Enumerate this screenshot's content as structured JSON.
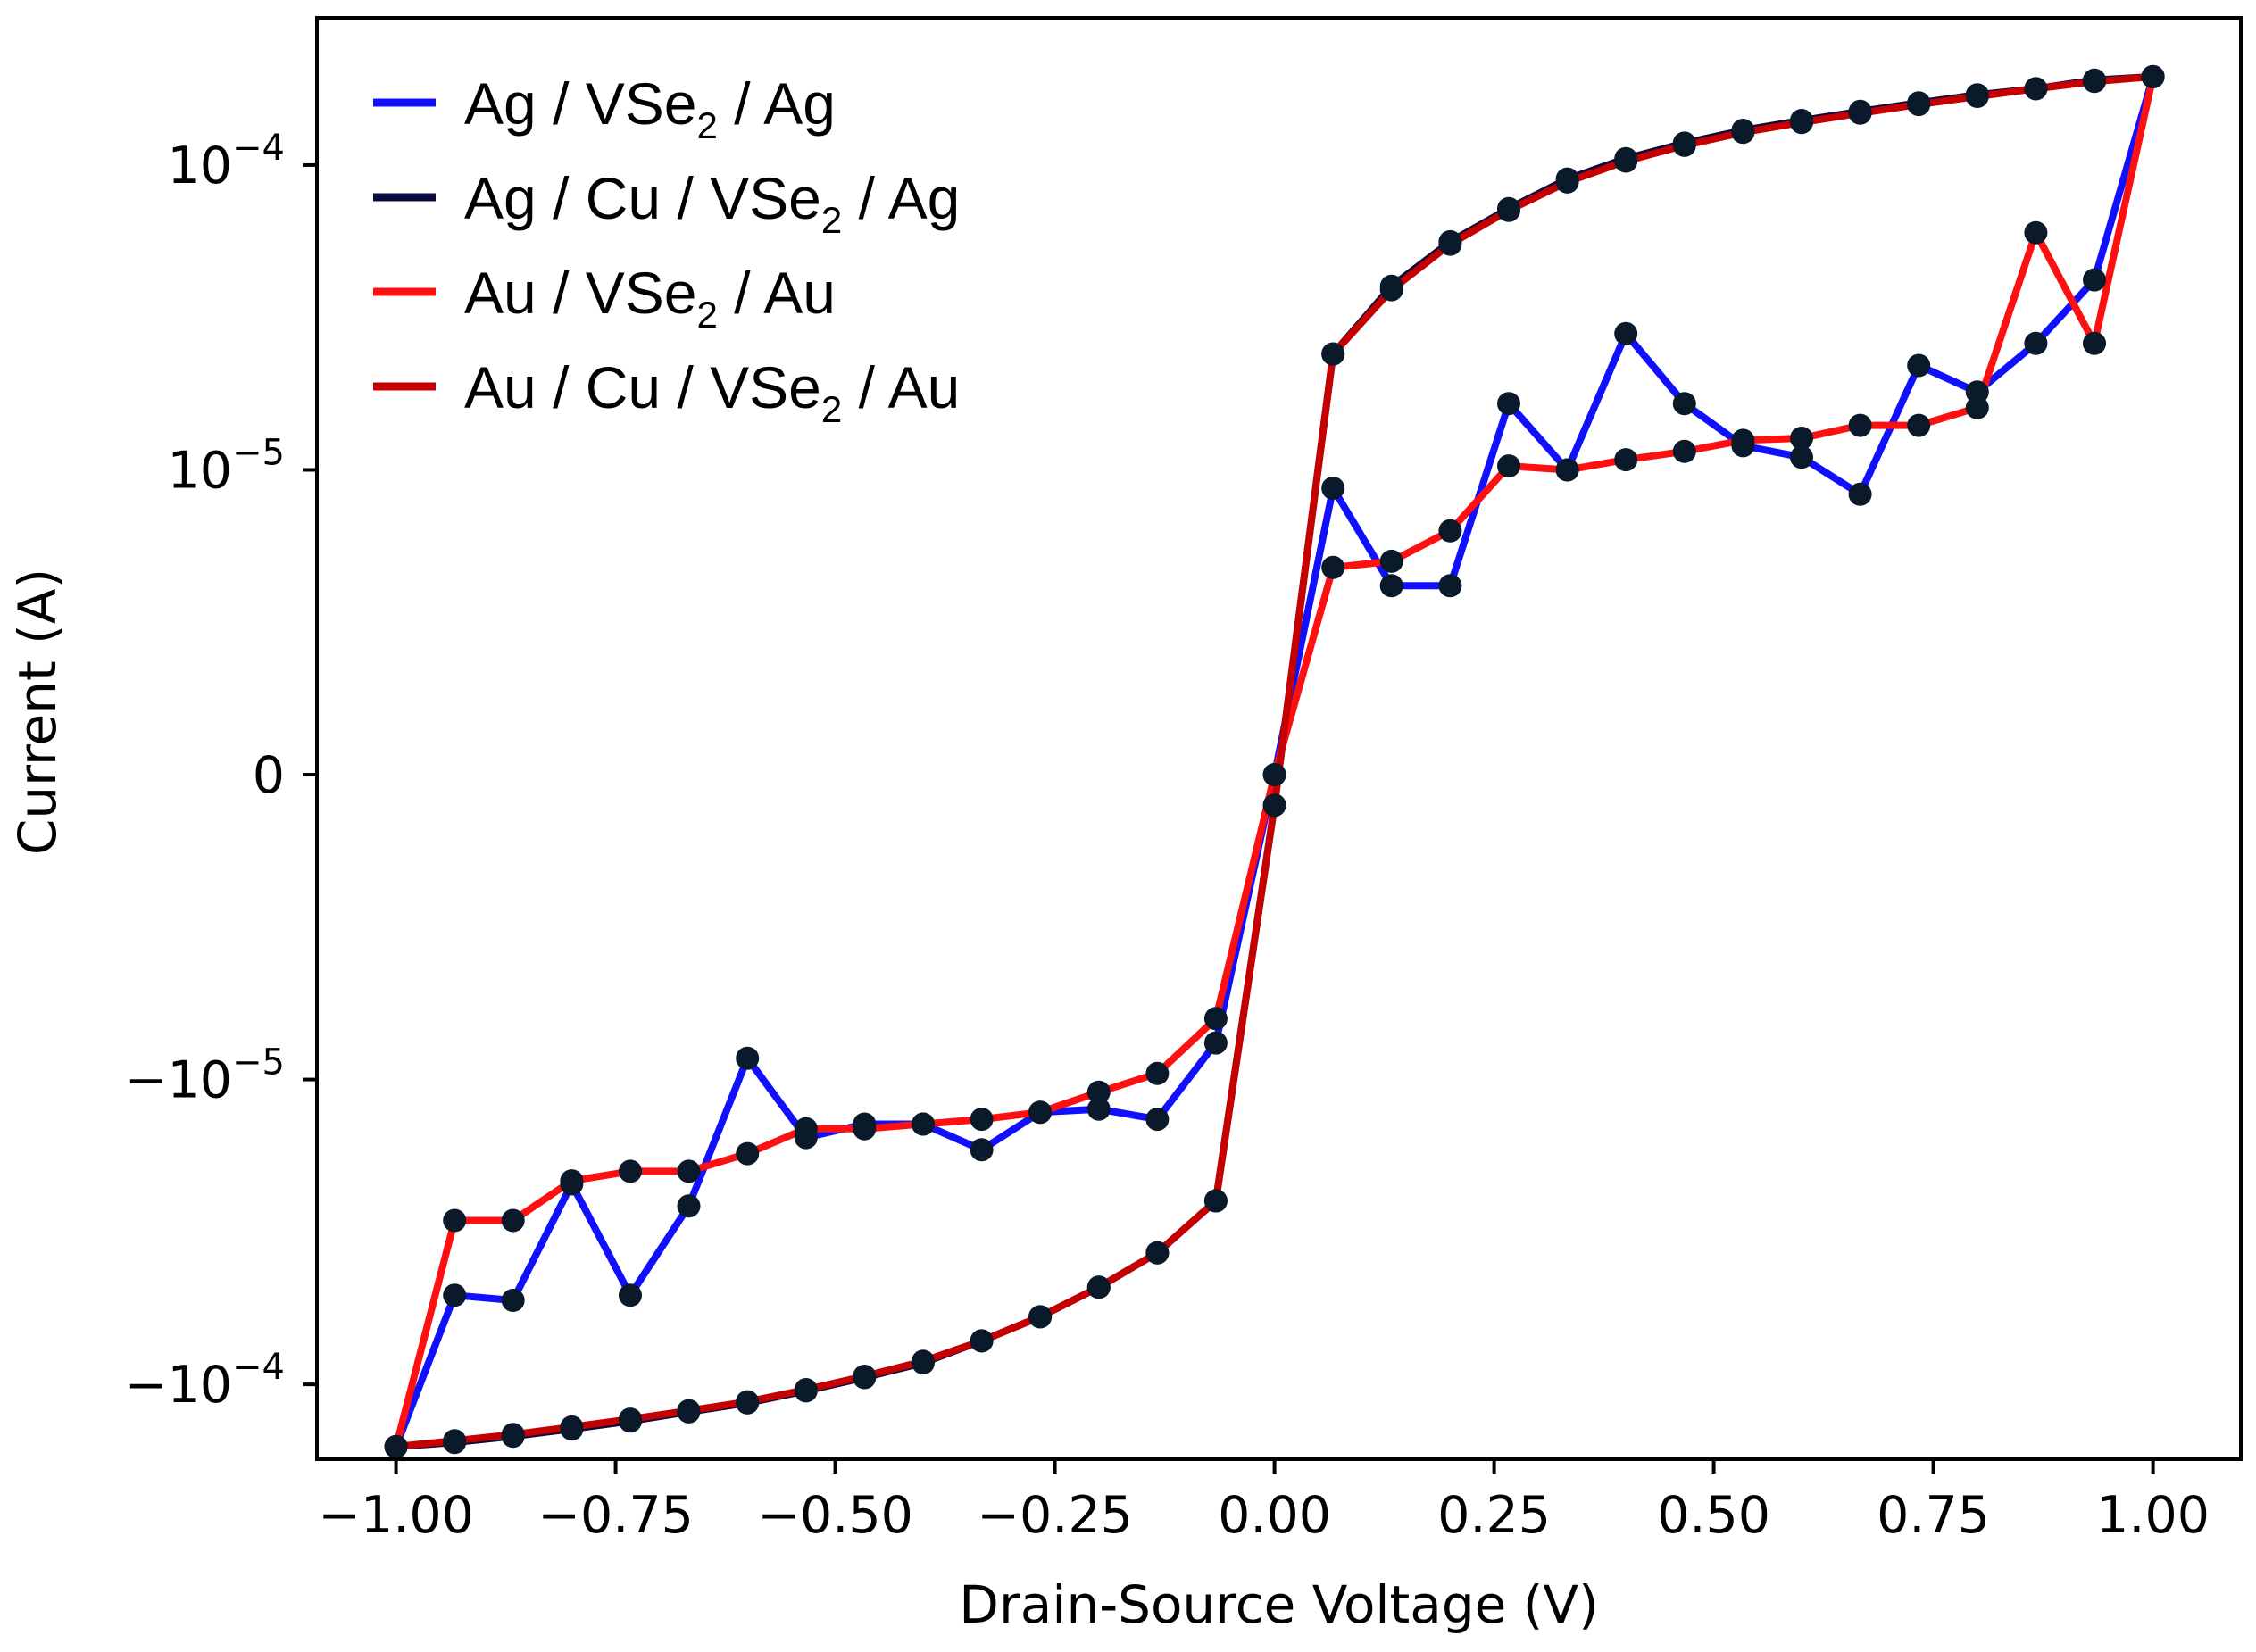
{
  "chart_data": {
    "type": "line",
    "xlabel": "Drain-Source Voltage (V)",
    "ylabel": "Current (A)",
    "xlim": [
      -1.09,
      1.1
    ],
    "y_scale": "symlog",
    "y_linthresh": 1e-05,
    "ylim": [
      -0.000176,
      0.000304
    ],
    "x_ticks": [
      -1.0,
      -0.75,
      -0.5,
      -0.25,
      0.0,
      0.25,
      0.5,
      0.75,
      1.0
    ],
    "x_tick_labels": [
      "−1.00",
      "−0.75",
      "−0.50",
      "−0.25",
      "0.00",
      "0.25",
      "0.50",
      "0.75",
      "1.00"
    ],
    "y_ticks": [
      {
        "value": 0.0001,
        "base": "10",
        "exp": "−4"
      },
      {
        "value": 1e-05,
        "base": "10",
        "exp": "−5"
      },
      {
        "value": 0,
        "base": "0",
        "exp": ""
      },
      {
        "value": -1e-05,
        "base": "−10",
        "exp": "−5"
      },
      {
        "value": -0.0001,
        "base": "−10",
        "exp": "−4"
      }
    ],
    "legend_position": "upper-left",
    "marker_color": "#0a1a2a",
    "series": [
      {
        "name": "Ag / VSe2 / Ag",
        "legend_main": "Ag / VSe",
        "legend_sub": "2",
        "legend_rest": " / Ag",
        "color": "#1010ff",
        "x": [
          -1.0,
          -0.9333,
          -0.8667,
          -0.8,
          -0.7333,
          -0.6667,
          -0.6,
          -0.5333,
          -0.4667,
          -0.4,
          -0.3333,
          -0.2667,
          -0.2,
          -0.1333,
          -0.0667,
          0.0,
          0.0667,
          0.1333,
          0.2,
          0.2667,
          0.3333,
          0.4,
          0.4667,
          0.5333,
          0.6,
          0.6667,
          0.7333,
          0.8,
          0.8667,
          0.9333,
          1.0
        ],
        "y": [
          -0.00016,
          -5.1e-05,
          -5.3e-05,
          -2.2e-05,
          -5.1e-05,
          -2.6e-05,
          -9.3e-06,
          -1.55e-05,
          -1.4e-05,
          -1.4e-05,
          -1.7e-05,
          -1.28e-05,
          -1.25e-05,
          -1.35e-05,
          -8.8e-06,
          0.0,
          9.4e-06,
          6.2e-06,
          6.2e-06,
          1.65e-05,
          1e-05,
          2.8e-05,
          1.65e-05,
          1.2e-05,
          1.1e-05,
          9.2e-06,
          2.2e-05,
          1.8e-05,
          2.6e-05,
          4.2e-05,
          0.000195
        ]
      },
      {
        "name": "Ag / Cu / VSe2 / Ag",
        "legend_main": "Ag / Cu / VSe",
        "legend_sub": "2",
        "legend_rest": " / Ag",
        "color": "#0a0a40",
        "x": [
          1.0,
          0.9333,
          0.8667,
          0.8,
          0.7333,
          0.6667,
          0.6,
          0.5333,
          0.4667,
          0.4,
          0.3333,
          0.2667,
          0.2,
          0.1333,
          0.0667,
          0.0,
          -0.0667,
          -0.1333,
          -0.2,
          -0.2667,
          -0.3333,
          -0.4,
          -0.4667,
          -0.5333,
          -0.6,
          -0.6667,
          -0.7333,
          -0.8,
          -0.8667,
          -0.9333,
          -1.0
        ],
        "y": [
          0.000195,
          0.00019,
          0.000178,
          0.00017,
          0.00016,
          0.00015,
          0.00014,
          0.00013,
          0.000118,
          0.000105,
          9e-05,
          7.2e-05,
          5.6e-05,
          4e-05,
          2.4e-05,
          -1e-06,
          -2.5e-05,
          -3.7e-05,
          -4.8e-05,
          -6e-05,
          -7.2e-05,
          -8.5e-05,
          -9.5e-05,
          -0.000105,
          -0.000115,
          -0.000123,
          -0.000132,
          -0.00014,
          -0.000148,
          -0.000155,
          -0.00016
        ]
      },
      {
        "name": "Au / VSe2 / Au",
        "legend_main": "Au / VSe",
        "legend_sub": "2",
        "legend_rest": " / Au",
        "color": "#ff1010",
        "x": [
          -1.0,
          -0.9333,
          -0.8667,
          -0.8,
          -0.7333,
          -0.6667,
          -0.6,
          -0.5333,
          -0.4667,
          -0.4,
          -0.3333,
          -0.2667,
          -0.2,
          -0.1333,
          -0.0667,
          0.0,
          0.0667,
          0.1333,
          0.2,
          0.2667,
          0.3333,
          0.4,
          0.4667,
          0.5333,
          0.6,
          0.6667,
          0.7333,
          0.8,
          0.8667,
          0.9333,
          1.0
        ],
        "y": [
          -0.00016,
          -2.9e-05,
          -2.9e-05,
          -2.15e-05,
          -2e-05,
          -2e-05,
          -1.75e-05,
          -1.45e-05,
          -1.45e-05,
          -1.4e-05,
          -1.35e-05,
          -1.28e-05,
          -1.1e-05,
          -9.8e-06,
          -8e-06,
          0.0,
          6.8e-06,
          7e-06,
          8e-06,
          1.03e-05,
          1e-05,
          1.08e-05,
          1.15e-05,
          1.25e-05,
          1.27e-05,
          1.4e-05,
          1.4e-05,
          1.6e-05,
          6e-05,
          2.6e-05,
          0.000195
        ]
      },
      {
        "name": "Au / Cu / VSe2 / Au",
        "legend_main": "Au / Cu / VSe",
        "legend_sub": "2",
        "legend_rest": " / Au",
        "color": "#c40000",
        "x": [
          1.0,
          0.9333,
          0.8667,
          0.8,
          0.7333,
          0.6667,
          0.6,
          0.5333,
          0.4667,
          0.4,
          0.3333,
          0.2667,
          0.2,
          0.1333,
          0.0667,
          0.0,
          -0.0667,
          -0.1333,
          -0.2,
          -0.2667,
          -0.3333,
          -0.4,
          -0.4667,
          -0.5333,
          -0.6,
          -0.6667,
          -0.7333,
          -0.8,
          -0.8667,
          -0.9333,
          -1.0
        ],
        "y": [
          0.000195,
          0.000188,
          0.000178,
          0.000168,
          0.000158,
          0.000148,
          0.000138,
          0.000128,
          0.000116,
          0.000103,
          8.8e-05,
          7.1e-05,
          5.5e-05,
          3.9e-05,
          2.4e-05,
          -1e-06,
          -2.5e-05,
          -3.7e-05,
          -4.8e-05,
          -6e-05,
          -7.2e-05,
          -8.4e-05,
          -9.4e-05,
          -0.000104,
          -0.000114,
          -0.000122,
          -0.00013,
          -0.000138,
          -0.000146,
          -0.000153,
          -0.00016
        ]
      }
    ]
  }
}
